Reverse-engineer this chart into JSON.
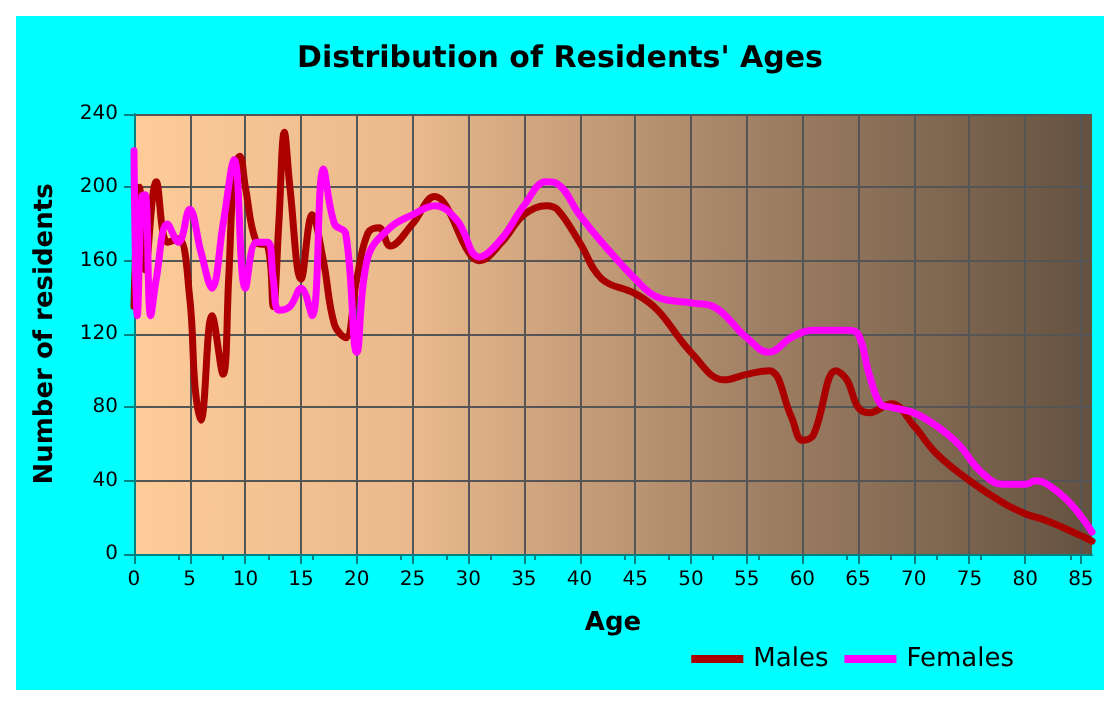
{
  "chart_data": {
    "type": "line",
    "title": "Distribution of Residents' Ages",
    "xlabel": "Age",
    "ylabel": "Number of residents",
    "xlim": [
      0,
      86
    ],
    "xticks": [
      0,
      5,
      10,
      15,
      20,
      25,
      30,
      35,
      40,
      45,
      50,
      55,
      60,
      65,
      70,
      75,
      80,
      85
    ],
    "ylim": [
      0,
      240
    ],
    "yticks": [
      0,
      40,
      80,
      120,
      160,
      200,
      240
    ],
    "grid": true,
    "legend": "bottom right",
    "marker": "none",
    "line_style": "solid",
    "series": [
      {
        "name": "Males",
        "color": "#aa0000",
        "x": [
          0,
          0.5,
          1,
          2,
          3,
          4,
          5,
          5.5,
          6,
          7,
          8,
          8.5,
          9,
          9.5,
          10,
          11,
          12,
          12.5,
          13,
          13.5,
          14,
          15,
          16,
          17,
          18,
          19,
          20,
          21,
          22,
          23,
          25,
          27,
          28,
          30,
          31,
          33,
          35,
          37,
          38,
          40,
          42,
          45,
          47,
          50,
          53,
          55,
          57,
          59,
          60,
          61,
          63,
          64,
          65,
          66,
          68,
          70,
          72,
          75,
          78,
          80,
          82,
          85,
          86
        ],
        "values": [
          135,
          200,
          155,
          203,
          170,
          172,
          140,
          90,
          73,
          130,
          98,
          150,
          210,
          217,
          200,
          170,
          168,
          135,
          180,
          230,
          200,
          150,
          185,
          160,
          125,
          118,
          150,
          175,
          178,
          168,
          180,
          195,
          190,
          165,
          160,
          170,
          185,
          190,
          188,
          170,
          150,
          142,
          133,
          110,
          95,
          98,
          100,
          75,
          62,
          65,
          100,
          95,
          80,
          77,
          82,
          70,
          55,
          40,
          28,
          22,
          18,
          10,
          7
        ]
      },
      {
        "name": "Females",
        "color": "#ff00ff",
        "x": [
          0,
          0.3,
          0.7,
          1,
          1.5,
          2,
          3,
          4,
          5,
          6,
          7,
          8,
          9,
          10,
          11,
          12,
          12.5,
          13,
          14,
          15,
          16,
          17,
          18,
          19,
          20,
          21,
          23,
          25,
          27,
          29,
          31,
          33,
          35,
          37,
          38,
          40,
          42,
          45,
          47,
          50,
          52,
          55,
          57,
          59,
          61,
          63,
          64,
          65,
          66,
          67,
          68,
          70,
          72,
          74,
          76,
          78,
          80,
          81,
          82,
          84,
          86
        ],
        "values": [
          220,
          130,
          195,
          196,
          130,
          150,
          180,
          170,
          188,
          165,
          145,
          180,
          215,
          145,
          170,
          170,
          150,
          133,
          135,
          145,
          130,
          210,
          180,
          175,
          110,
          162,
          178,
          185,
          190,
          182,
          162,
          172,
          190,
          203,
          202,
          185,
          170,
          150,
          140,
          137,
          135,
          118,
          110,
          118,
          122,
          122,
          122,
          120,
          98,
          82,
          80,
          77,
          70,
          60,
          45,
          38,
          38,
          40,
          38,
          28,
          12
        ]
      }
    ]
  }
}
